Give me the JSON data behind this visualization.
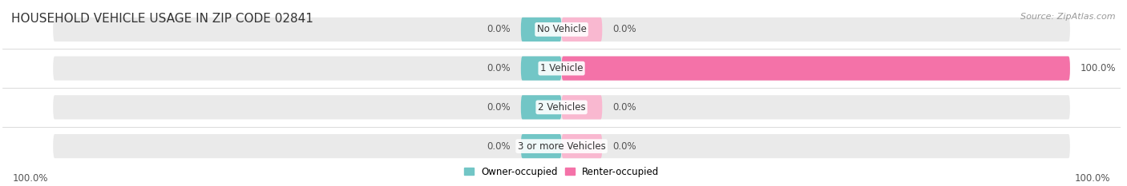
{
  "title": "HOUSEHOLD VEHICLE USAGE IN ZIP CODE 02841",
  "source": "Source: ZipAtlas.com",
  "categories": [
    "No Vehicle",
    "1 Vehicle",
    "2 Vehicles",
    "3 or more Vehicles"
  ],
  "owner_values": [
    0.0,
    0.0,
    0.0,
    0.0
  ],
  "renter_values": [
    0.0,
    100.0,
    0.0,
    0.0
  ],
  "owner_color": "#72C6C6",
  "renter_color": "#F472A8",
  "renter_light_color": "#F9B8D0",
  "bar_bg_color": "#EAEAEA",
  "bar_border_color": "#D8D8D8",
  "owner_label": "Owner-occupied",
  "renter_label": "Renter-occupied",
  "left_label": "100.0%",
  "right_label": "100.0%",
  "title_fontsize": 11,
  "source_fontsize": 8,
  "label_fontsize": 8.5,
  "cat_fontsize": 8.5,
  "bar_height": 0.62,
  "figsize": [
    14.06,
    2.33
  ],
  "dpi": 100,
  "owner_stub": 8.0,
  "renter_stub": 8.0
}
